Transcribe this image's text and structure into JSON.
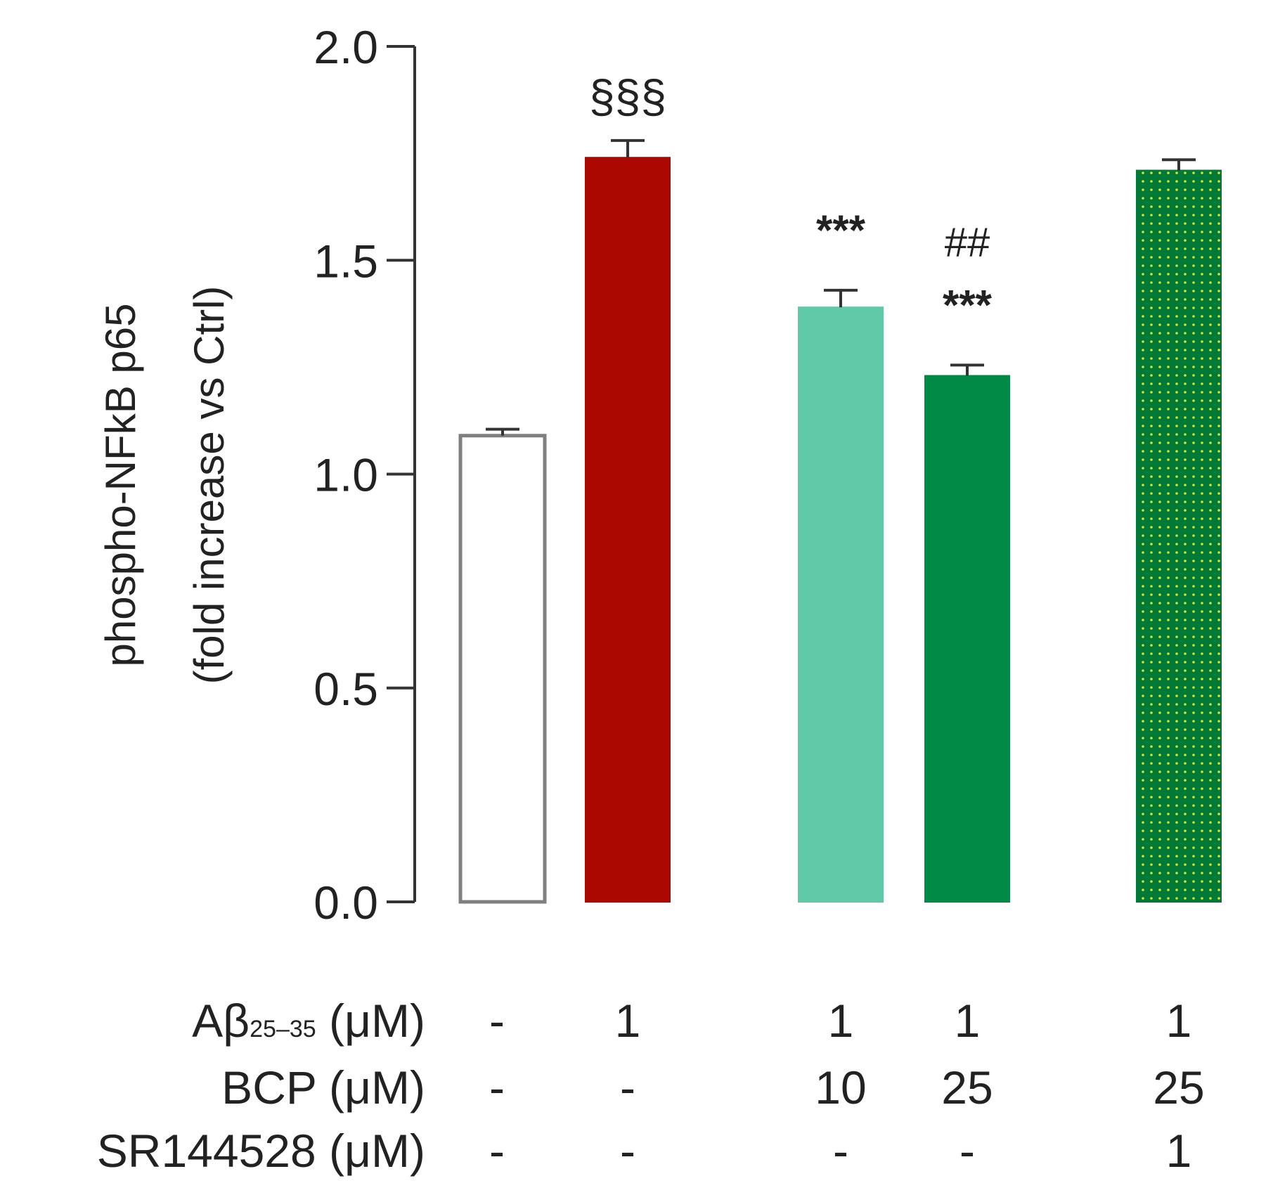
{
  "chart_data": {
    "type": "bar",
    "title": "",
    "ylabel_line1": "phospho-NFkB p65",
    "ylabel_line2": "(fold increase vs Ctrl)",
    "ylim": [
      0,
      2.0
    ],
    "yticks": [
      "0.0",
      "0.5",
      "1.0",
      "1.5",
      "2.0"
    ],
    "ytick_values": [
      0,
      0.5,
      1.0,
      1.5,
      2.0
    ],
    "grid": false,
    "bars": [
      {
        "value": 1.09,
        "error": 0.015,
        "annotation": "",
        "fill": "#ffffff",
        "stroke": "#7f7f7f",
        "pattern": false
      },
      {
        "value": 1.74,
        "error": 0.04,
        "annotation": "§§§",
        "fill": "#aa0800",
        "stroke": "#aa0800",
        "pattern": false
      },
      {
        "value": 1.39,
        "error": 0.04,
        "annotation": "***",
        "fill": "#5fc9a8",
        "stroke": "#5fc9a8",
        "pattern": false
      },
      {
        "value": 1.23,
        "error": 0.025,
        "annotation": "***",
        "annotation2": "##",
        "fill": "#008a45",
        "stroke": "#008a45",
        "pattern": false
      },
      {
        "value": 1.71,
        "error": 0.025,
        "annotation": "",
        "fill": "#007a36",
        "stroke": "#007a36",
        "pattern": true,
        "dot_color": "#d7e52a"
      }
    ],
    "treatment_rows": [
      {
        "label_main": "Aβ",
        "label_sub": "25–35",
        "label_unit": " (μM)",
        "values": [
          "-",
          "1",
          "1",
          "1",
          "1"
        ]
      },
      {
        "label_main": "BCP (μM)",
        "label_sub": "",
        "label_unit": "",
        "values": [
          "-",
          "-",
          "10",
          "25",
          "25"
        ]
      },
      {
        "label_main": "SR144528 (μM)",
        "label_sub": "",
        "label_unit": "",
        "values": [
          "-",
          "-",
          "-",
          "-",
          "1"
        ]
      }
    ]
  }
}
